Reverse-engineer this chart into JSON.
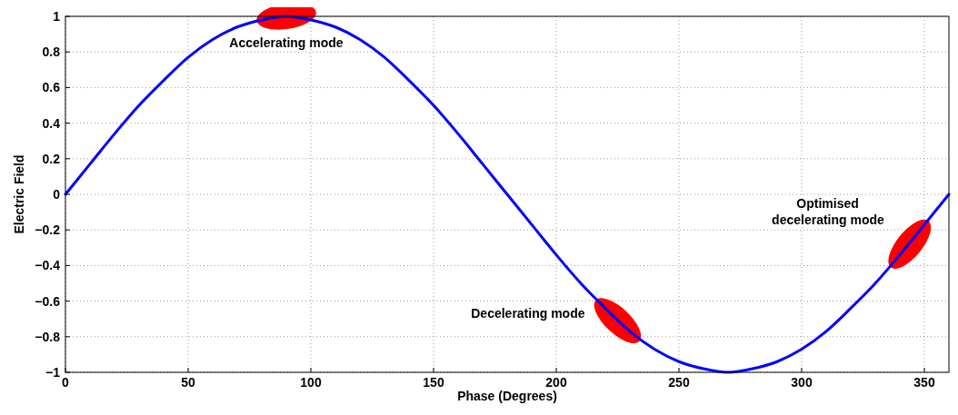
{
  "chart_data": {
    "type": "line",
    "xlabel": "Phase (Degrees)",
    "ylabel": "Electric Field",
    "xlim": [
      0,
      360
    ],
    "xticks": [
      0,
      50,
      100,
      150,
      200,
      250,
      300,
      350
    ],
    "ylim": [
      -1,
      1
    ],
    "yticks": [
      -1,
      -0.8,
      -0.6,
      -0.4,
      -0.2,
      0,
      0.2,
      0.4,
      0.6,
      0.8,
      1
    ],
    "grid": true,
    "x": [
      0,
      10,
      20,
      30,
      40,
      50,
      60,
      70,
      80,
      90,
      100,
      110,
      120,
      130,
      140,
      150,
      160,
      170,
      180,
      190,
      200,
      210,
      220,
      230,
      240,
      250,
      260,
      270,
      280,
      290,
      300,
      310,
      320,
      330,
      340,
      350,
      360
    ],
    "series": [
      {
        "color": "#0000ff",
        "values": [
          0,
          0.17,
          0.34,
          0.5,
          0.64,
          0.77,
          0.87,
          0.94,
          0.98,
          1,
          0.98,
          0.94,
          0.87,
          0.77,
          0.64,
          0.5,
          0.34,
          0.17,
          0,
          -0.17,
          -0.34,
          -0.5,
          -0.64,
          -0.77,
          -0.87,
          -0.94,
          -0.98,
          -1,
          -0.98,
          -0.94,
          -0.87,
          -0.77,
          -0.64,
          -0.5,
          -0.34,
          -0.17,
          0
        ]
      }
    ],
    "annotations": [
      {
        "text": "Accelerating mode",
        "x": 90,
        "y": 1
      },
      {
        "text": "Decelerating mode",
        "x": 225,
        "y": -0.71
      },
      {
        "text": "Optimised\ndecelerating mode",
        "x": 344,
        "y": -0.28
      }
    ]
  }
}
